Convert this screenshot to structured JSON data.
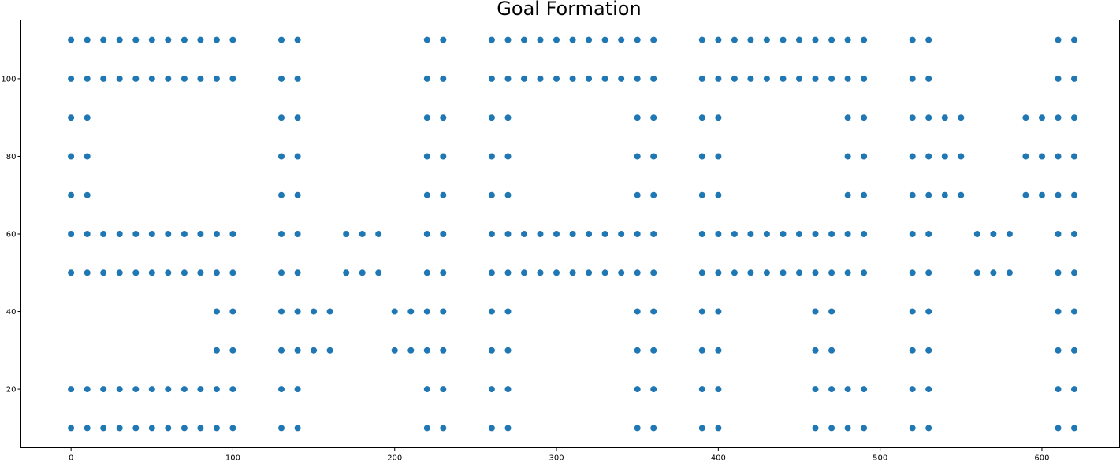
{
  "chart_data": {
    "type": "scatter",
    "title": "Goal Formation",
    "xlabel": "",
    "ylabel": "",
    "xlim": [
      -31,
      648
    ],
    "ylim": [
      4.9,
      115.1
    ],
    "xticks": [
      0,
      100,
      200,
      300,
      400,
      500,
      600
    ],
    "yticks": [
      20,
      40,
      60,
      80,
      100
    ],
    "grid": false,
    "marker_color": "#1f77b4",
    "rows": [
      {
        "y": 110,
        "x": [
          0,
          10,
          20,
          30,
          40,
          50,
          60,
          70,
          80,
          90,
          100,
          130,
          140,
          220,
          230,
          260,
          270,
          280,
          290,
          300,
          310,
          320,
          330,
          340,
          350,
          360,
          390,
          400,
          410,
          420,
          430,
          440,
          450,
          460,
          470,
          480,
          490,
          520,
          530,
          610,
          620
        ]
      },
      {
        "y": 100,
        "x": [
          0,
          10,
          20,
          30,
          40,
          50,
          60,
          70,
          80,
          90,
          100,
          130,
          140,
          220,
          230,
          260,
          270,
          280,
          290,
          300,
          310,
          320,
          330,
          340,
          350,
          360,
          390,
          400,
          410,
          420,
          430,
          440,
          450,
          460,
          470,
          480,
          490,
          520,
          530,
          610,
          620
        ]
      },
      {
        "y": 90,
        "x": [
          0,
          10,
          130,
          140,
          220,
          230,
          260,
          270,
          350,
          360,
          390,
          400,
          480,
          490,
          520,
          530,
          540,
          550,
          590,
          600,
          610,
          620
        ]
      },
      {
        "y": 80,
        "x": [
          0,
          10,
          130,
          140,
          220,
          230,
          260,
          270,
          350,
          360,
          390,
          400,
          480,
          490,
          520,
          530,
          540,
          550,
          590,
          600,
          610,
          620
        ]
      },
      {
        "y": 70,
        "x": [
          0,
          10,
          130,
          140,
          220,
          230,
          260,
          270,
          350,
          360,
          390,
          400,
          480,
          490,
          520,
          530,
          540,
          550,
          590,
          600,
          610,
          620
        ]
      },
      {
        "y": 60,
        "x": [
          0,
          10,
          20,
          30,
          40,
          50,
          60,
          70,
          80,
          90,
          100,
          130,
          140,
          170,
          180,
          190,
          220,
          230,
          260,
          270,
          280,
          290,
          300,
          310,
          320,
          330,
          340,
          350,
          360,
          390,
          400,
          410,
          420,
          430,
          440,
          450,
          460,
          470,
          480,
          490,
          520,
          530,
          560,
          570,
          580,
          610,
          620
        ]
      },
      {
        "y": 50,
        "x": [
          0,
          10,
          20,
          30,
          40,
          50,
          60,
          70,
          80,
          90,
          100,
          130,
          140,
          170,
          180,
          190,
          220,
          230,
          260,
          270,
          280,
          290,
          300,
          310,
          320,
          330,
          340,
          350,
          360,
          390,
          400,
          410,
          420,
          430,
          440,
          450,
          460,
          470,
          480,
          490,
          520,
          530,
          560,
          570,
          580,
          610,
          620
        ]
      },
      {
        "y": 40,
        "x": [
          90,
          100,
          130,
          140,
          150,
          160,
          200,
          210,
          220,
          230,
          260,
          270,
          350,
          360,
          390,
          400,
          460,
          470,
          520,
          530,
          610,
          620
        ]
      },
      {
        "y": 30,
        "x": [
          90,
          100,
          130,
          140,
          150,
          160,
          200,
          210,
          220,
          230,
          260,
          270,
          350,
          360,
          390,
          400,
          460,
          470,
          520,
          530,
          610,
          620
        ]
      },
      {
        "y": 20,
        "x": [
          0,
          10,
          20,
          30,
          40,
          50,
          60,
          70,
          80,
          90,
          100,
          130,
          140,
          220,
          230,
          260,
          270,
          350,
          360,
          390,
          400,
          460,
          470,
          480,
          490,
          520,
          530,
          610,
          620
        ]
      },
      {
        "y": 10,
        "x": [
          0,
          10,
          20,
          30,
          40,
          50,
          60,
          70,
          80,
          90,
          100,
          130,
          140,
          220,
          230,
          260,
          270,
          350,
          360,
          390,
          400,
          460,
          470,
          480,
          490,
          520,
          530,
          610,
          620
        ]
      }
    ]
  }
}
